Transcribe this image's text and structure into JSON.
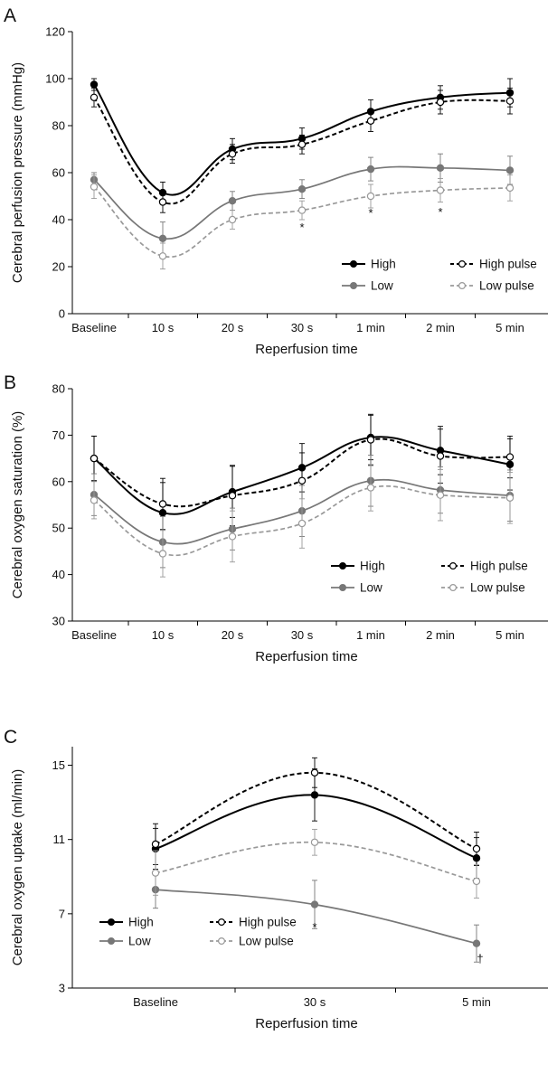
{
  "chart_data": [
    {
      "type": "line",
      "panel_label": "A",
      "title": "",
      "xlabel": "Reperfusion time",
      "ylabel": "Cerebral perfusion pressure (mmHg)",
      "categories": [
        "Baseline",
        "10 s",
        "20 s",
        "30 s",
        "1 min",
        "2 min",
        "5 min"
      ],
      "ylim": [
        0,
        120
      ],
      "yticks": [
        "0",
        "20",
        "40",
        "60",
        "80",
        "100",
        "120"
      ],
      "grid": false,
      "legend_placement": "bottom-right",
      "series": [
        {
          "name": "High",
          "values": [
            97.5,
            51.5,
            70,
            74.5,
            86,
            92,
            94
          ],
          "errors": [
            2.5,
            4.5,
            4.5,
            4.5,
            5,
            5,
            6
          ],
          "color": "#000000",
          "dashed": false,
          "hollow": false
        },
        {
          "name": "High pulse",
          "values": [
            92,
            47.5,
            68,
            72,
            82,
            90,
            90.5
          ],
          "errors": [
            4,
            4.5,
            4,
            4,
            4.5,
            5,
            5.5
          ],
          "color": "#000000",
          "dashed": true,
          "hollow": true
        },
        {
          "name": "Low",
          "values": [
            57,
            32,
            48,
            53,
            61.5,
            62,
            61
          ],
          "errors": [
            3,
            7,
            4,
            4,
            5,
            6,
            6
          ],
          "color": "#777777",
          "dashed": false,
          "hollow": false
        },
        {
          "name": "Low pulse",
          "values": [
            54,
            24.5,
            40,
            44,
            50,
            52.5,
            53.5
          ],
          "errors": [
            5,
            5.5,
            4,
            4,
            5,
            5,
            5.5
          ],
          "color": "#999999",
          "dashed": true,
          "hollow": true
        }
      ],
      "annotations": [
        {
          "text": "*",
          "category": "30 s",
          "y": 37
        },
        {
          "text": "*",
          "category": "1 min",
          "y": 43
        },
        {
          "text": "*",
          "category": "2 min",
          "y": 43.5
        }
      ]
    },
    {
      "type": "line",
      "panel_label": "B",
      "title": "",
      "xlabel": "Reperfusion time",
      "ylabel": "Cerebral oxygen saturation (%)",
      "categories": [
        "Baseline",
        "10 s",
        "20 s",
        "30 s",
        "1 min",
        "2 min",
        "5 min"
      ],
      "ylim": [
        30,
        80
      ],
      "yticks": [
        "30",
        "40",
        "50",
        "60",
        "70",
        "80"
      ],
      "grid": false,
      "legend_placement": "bottom-right",
      "series": [
        {
          "name": "High",
          "values": [
            65,
            53.3,
            57.8,
            63,
            69.5,
            66.7,
            63.7
          ],
          "errors": [
            4.8,
            6.5,
            5.5,
            5.2,
            4.8,
            5.2,
            5.5
          ],
          "color": "#000000",
          "dashed": false,
          "hollow": false
        },
        {
          "name": "High pulse",
          "values": [
            65,
            55.2,
            57,
            60.2,
            69,
            65.5,
            65.3
          ],
          "errors": [
            4.8,
            5.5,
            6.5,
            6,
            5.5,
            5.8,
            4.5
          ],
          "color": "#000000",
          "dashed": true,
          "hollow": true
        },
        {
          "name": "Low",
          "values": [
            57.2,
            47,
            49.8,
            53.7,
            60.2,
            58.2,
            57
          ],
          "errors": [
            4.5,
            5.5,
            4.5,
            5.5,
            5.5,
            5,
            5.5
          ],
          "color": "#777777",
          "dashed": false,
          "hollow": false
        },
        {
          "name": "Low pulse",
          "values": [
            56,
            44.5,
            48.2,
            51,
            58.7,
            57.1,
            56.5
          ],
          "errors": [
            4,
            5,
            5.5,
            5.3,
            5,
            5.5,
            5.5
          ],
          "color": "#999999",
          "dashed": true,
          "hollow": true
        }
      ],
      "annotations": []
    },
    {
      "type": "line",
      "panel_label": "C",
      "title": "",
      "xlabel": "Reperfusion time",
      "ylabel": "Cerebral oxygen uptake (ml/min)",
      "categories": [
        "Baseline",
        "30 s",
        "5 min"
      ],
      "ylim": [
        3,
        16
      ],
      "yticks": [
        "3",
        "7",
        "11",
        "15"
      ],
      "grid": false,
      "legend_placement": "bottom-left",
      "series": [
        {
          "name": "High",
          "values": [
            10.5,
            13.4,
            10
          ],
          "errors": [
            1.1,
            1.4,
            1.1
          ],
          "color": "#000000",
          "dashed": false,
          "hollow": false
        },
        {
          "name": "High pulse",
          "values": [
            10.75,
            14.6,
            10.5
          ],
          "errors": [
            1.1,
            0.8,
            0.9
          ],
          "color": "#000000",
          "dashed": true,
          "hollow": true
        },
        {
          "name": "Low",
          "values": [
            8.3,
            7.5,
            5.4
          ],
          "errors": [
            1.0,
            1.3,
            1.0
          ],
          "color": "#777777",
          "dashed": false,
          "hollow": false
        },
        {
          "name": "Low pulse",
          "values": [
            9.2,
            10.85,
            8.75
          ],
          "errors": [
            1.2,
            0.7,
            0.9
          ],
          "color": "#999999",
          "dashed": true,
          "hollow": true
        }
      ],
      "annotations": [
        {
          "text": "*",
          "category": "30 s",
          "y": 6.3
        },
        {
          "text": "†",
          "category": "5 min",
          "y": 4.6
        }
      ]
    }
  ]
}
